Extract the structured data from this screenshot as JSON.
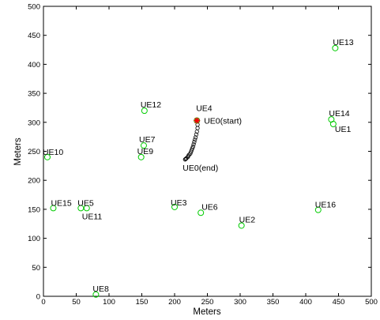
{
  "chart_data": {
    "type": "scatter",
    "xlabel": "Meters",
    "ylabel": "Meters",
    "xlim": [
      0,
      500
    ],
    "ylim": [
      0,
      500
    ],
    "xticks": [
      0,
      50,
      100,
      150,
      200,
      250,
      300,
      350,
      400,
      450,
      500
    ],
    "yticks": [
      0,
      50,
      100,
      150,
      200,
      250,
      300,
      350,
      400,
      450,
      500
    ],
    "grid": false,
    "ue_color": "#00cc00",
    "trajectory_color": "#000000",
    "start_marker_color": "#ff0000",
    "series": [
      {
        "marker": "circle",
        "points": [
          {
            "label": "UE1",
            "x": 442,
            "y": 297
          },
          {
            "label": "UE2",
            "x": 302,
            "y": 122
          },
          {
            "label": "UE3",
            "x": 200,
            "y": 154
          },
          {
            "label": "UE4",
            "x": 234,
            "y": 303
          },
          {
            "label": "UE5",
            "x": 57,
            "y": 152
          },
          {
            "label": "UE6",
            "x": 240,
            "y": 144
          },
          {
            "label": "UE7",
            "x": 153,
            "y": 260
          },
          {
            "label": "UE8",
            "x": 80,
            "y": 3
          },
          {
            "label": "UE9",
            "x": 149,
            "y": 240
          },
          {
            "label": "UE10",
            "x": 6,
            "y": 240
          },
          {
            "label": "UE11",
            "x": 66,
            "y": 152
          },
          {
            "label": "UE12",
            "x": 154,
            "y": 320
          },
          {
            "label": "UE13",
            "x": 445,
            "y": 428
          },
          {
            "label": "UE14",
            "x": 439,
            "y": 305
          },
          {
            "label": "UE15",
            "x": 15,
            "y": 152
          },
          {
            "label": "UE16",
            "x": 419,
            "y": 149
          }
        ]
      },
      {
        "marker": "circle",
        "trajectory": true,
        "start_label": "UE0(start)",
        "end_label": "UE0(end)",
        "points": [
          {
            "x": 234,
            "y": 303
          },
          {
            "x": 235,
            "y": 296
          },
          {
            "x": 235,
            "y": 290
          },
          {
            "x": 234,
            "y": 284
          },
          {
            "x": 233,
            "y": 279
          },
          {
            "x": 232,
            "y": 274
          },
          {
            "x": 231,
            "y": 270
          },
          {
            "x": 230,
            "y": 266
          },
          {
            "x": 229,
            "y": 262
          },
          {
            "x": 228,
            "y": 258
          },
          {
            "x": 227,
            "y": 255
          },
          {
            "x": 226,
            "y": 252
          },
          {
            "x": 225,
            "y": 249
          },
          {
            "x": 224,
            "y": 246
          },
          {
            "x": 222,
            "y": 244
          },
          {
            "x": 221,
            "y": 242
          },
          {
            "x": 220,
            "y": 240
          },
          {
            "x": 218,
            "y": 238
          },
          {
            "x": 217,
            "y": 237
          },
          {
            "x": 216,
            "y": 236
          }
        ]
      }
    ]
  }
}
